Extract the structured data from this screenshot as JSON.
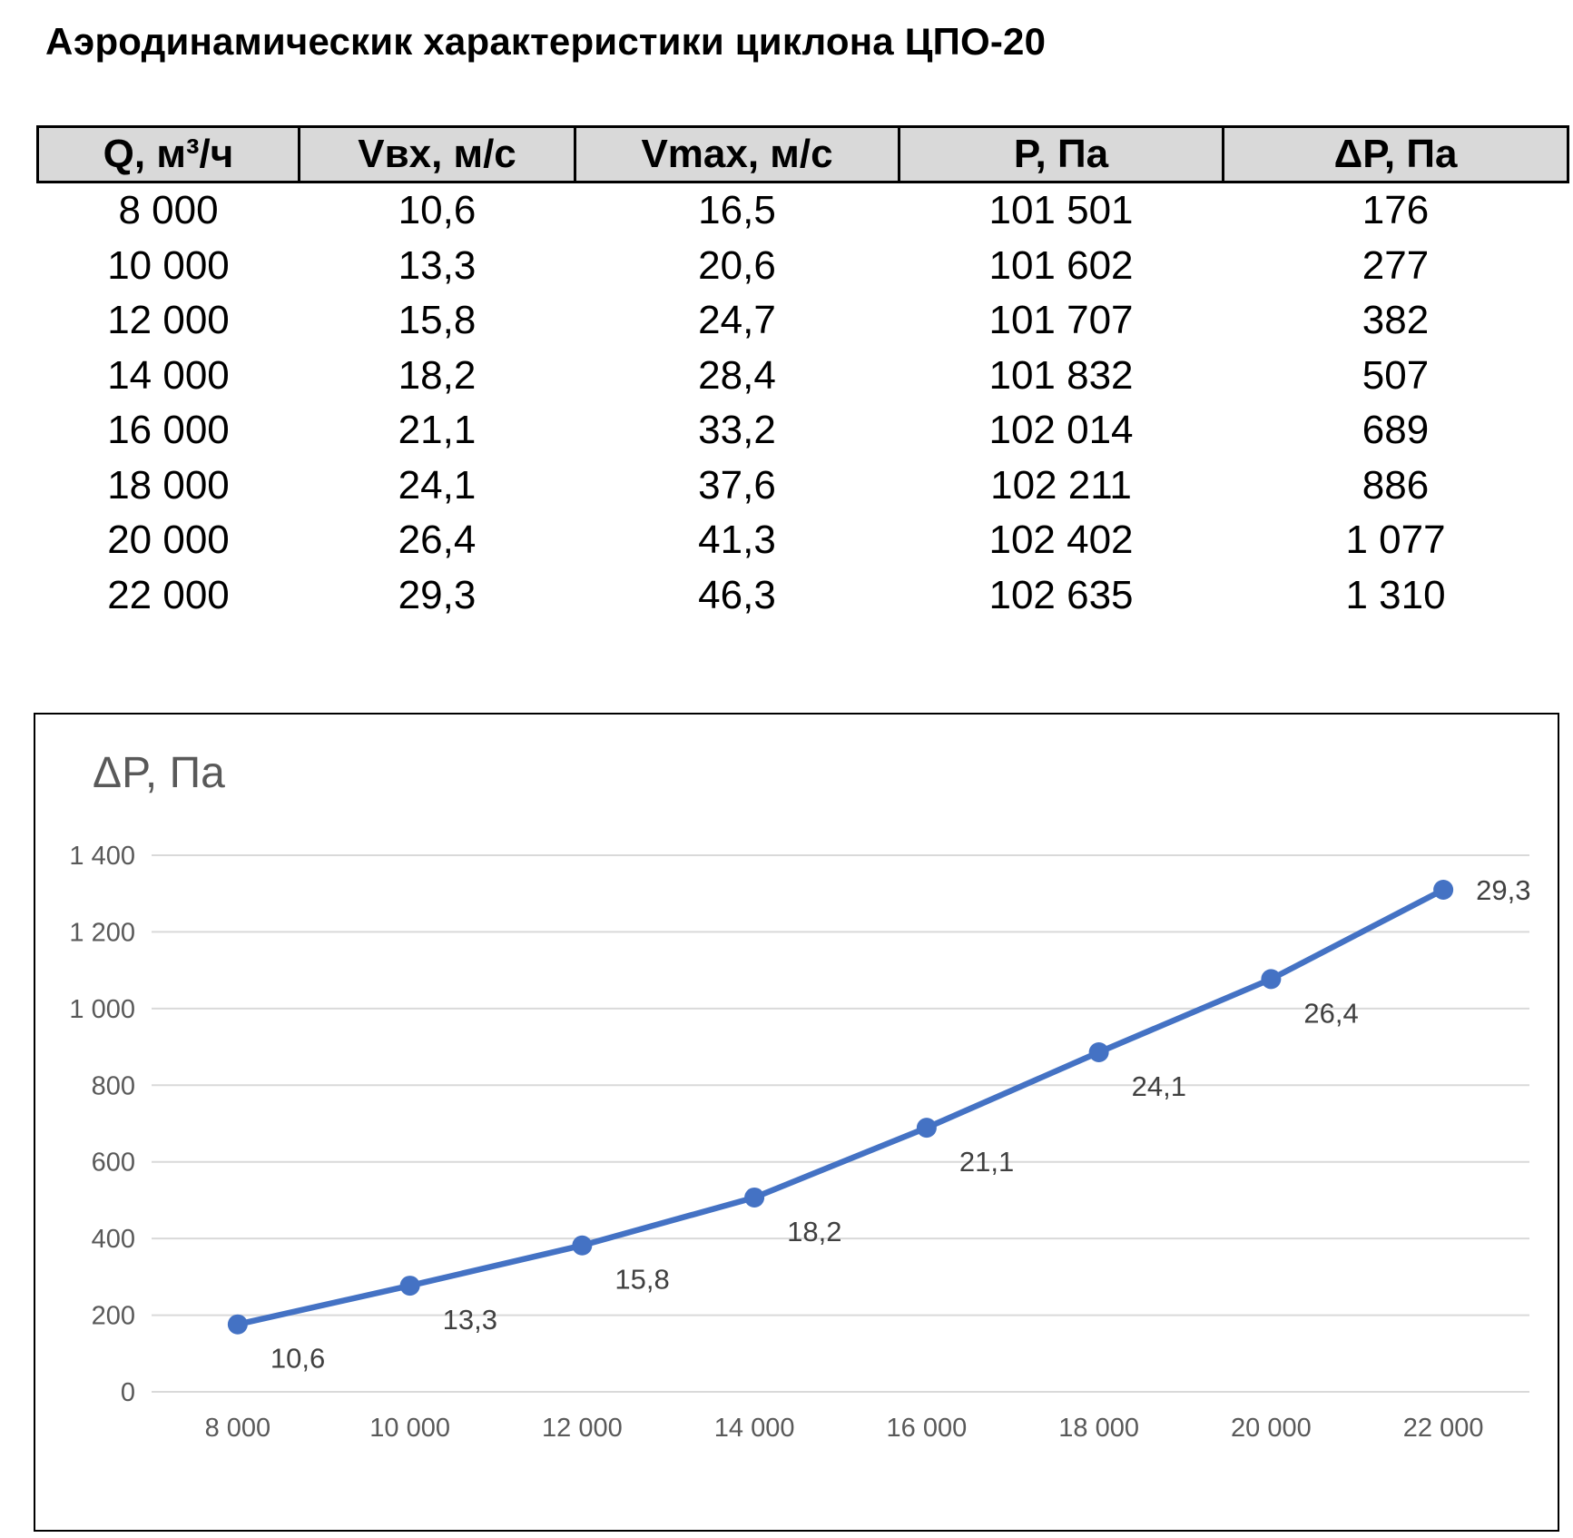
{
  "title": "Аэродинамическик характеристики циклона ЦПО-20",
  "table": {
    "headers": [
      "Q, м³/ч",
      "Vвх, м/с",
      "Vmax, м/с",
      "P, Па",
      "ΔP, Па"
    ],
    "rows": [
      [
        "8 000",
        "10,6",
        "16,5",
        "101 501",
        "176"
      ],
      [
        "10 000",
        "13,3",
        "20,6",
        "101 602",
        "277"
      ],
      [
        "12 000",
        "15,8",
        "24,7",
        "101 707",
        "382"
      ],
      [
        "14 000",
        "18,2",
        "28,4",
        "101 832",
        "507"
      ],
      [
        "16 000",
        "21,1",
        "33,2",
        "102 014",
        "689"
      ],
      [
        "18 000",
        "24,1",
        "37,6",
        "102 211",
        "886"
      ],
      [
        "20 000",
        "26,4",
        "41,3",
        "102 402",
        "1 077"
      ],
      [
        "22 000",
        "29,3",
        "46,3",
        "102 635",
        "1 310"
      ]
    ]
  },
  "chart_data": {
    "type": "line",
    "ylabel": "ΔP, Па",
    "xlabel": "",
    "categories": [
      "8 000",
      "10 000",
      "12 000",
      "14 000",
      "16 000",
      "18 000",
      "20 000",
      "22 000"
    ],
    "series": [
      {
        "values": [
          176,
          277,
          382,
          507,
          689,
          886,
          1077,
          1310
        ],
        "data_labels": [
          "10,6",
          "13,3",
          "15,8",
          "18,2",
          "21,1",
          "24,1",
          "26,4",
          "29,3"
        ],
        "color": "#4472c4"
      }
    ],
    "ylim": [
      0,
      1400
    ],
    "yticks": [
      0,
      200,
      400,
      600,
      800,
      1000,
      1200,
      1400
    ],
    "ytick_labels": [
      "0",
      "200",
      "400",
      "600",
      "800",
      "1 000",
      "1 200",
      "1 400"
    ],
    "grid": true,
    "legend": "none",
    "gridline_color": "#d9d9d9"
  }
}
